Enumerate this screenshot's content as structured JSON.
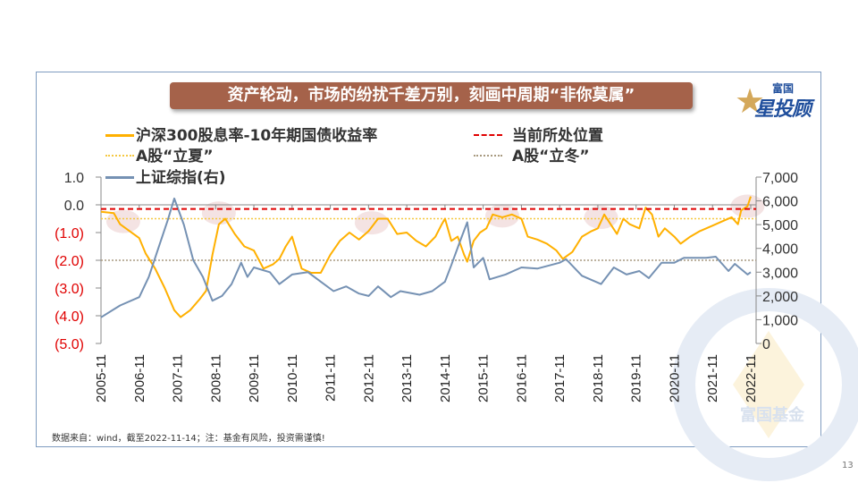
{
  "title": "资产轮动，市场的纷扰千差万别，刻画中周期“非你莫属”",
  "logo": {
    "small": "富国",
    "big": "星投顾",
    "watermark": "富国基金"
  },
  "source_note": "数据来自：wind，截至2022-11-14；注：基金有风险，投资需谨慎!",
  "page_number": "13",
  "colors": {
    "yield": "#ffb000",
    "index": "#7591b3",
    "current": "#e00000",
    "summer": "#f5c842",
    "winter": "#a89a80",
    "banner": "#a5624a",
    "highlight": "#f2dede",
    "negative_tick": "#e00000"
  },
  "chart_data": {
    "type": "line",
    "legend": [
      {
        "key": "yield",
        "label": "沪深300股息率-10年期国债收益率",
        "style": "solid"
      },
      {
        "key": "current",
        "label": "当前所处位置",
        "style": "dashed"
      },
      {
        "key": "summer",
        "label": "A股“立夏”",
        "style": "dotted"
      },
      {
        "key": "winter",
        "label": "A股“立冬”",
        "style": "dotted"
      },
      {
        "key": "index",
        "label": "上证综指(右)",
        "style": "solid"
      }
    ],
    "legend_placement": "top-left",
    "xlim": [
      "2005-11",
      "2022-11"
    ],
    "x_ticks": [
      "2005-11",
      "2006-11",
      "2007-11",
      "2008-11",
      "2009-11",
      "2010-11",
      "2011-11",
      "2012-11",
      "2013-11",
      "2014-11",
      "2015-11",
      "2016-11",
      "2017-11",
      "2018-11",
      "2019-11",
      "2020-11",
      "2021-11",
      "2022-11"
    ],
    "y_left": {
      "lim": [
        -5.0,
        1.0
      ],
      "ticks": [
        1.0,
        0.0,
        -1.0,
        -2.0,
        -3.0,
        -4.0,
        -5.0
      ],
      "tick_labels": [
        "1.0",
        "0.0",
        "(1.0)",
        "(2.0)",
        "(3.0)",
        "(4.0)",
        "(5.0)"
      ]
    },
    "y_right": {
      "lim": [
        0,
        7000
      ],
      "ticks": [
        7000,
        6000,
        5000,
        4000,
        3000,
        2000,
        1000,
        0
      ],
      "tick_labels": [
        "7,000",
        "6,000",
        "5,000",
        "4,000",
        "3,000",
        "2,000",
        "1,000",
        "0"
      ]
    },
    "reference_lines": {
      "current": -0.15,
      "summer": -0.5,
      "winter": -2.0
    },
    "highlights": [
      {
        "date": "2006-06",
        "value": -0.6
      },
      {
        "date": "2008-12",
        "value": -0.3
      },
      {
        "date": "2012-12",
        "value": -0.65
      },
      {
        "date": "2016-05",
        "value": -0.4
      },
      {
        "date": "2018-12",
        "value": -0.45
      },
      {
        "date": "2022-10",
        "value": -0.05
      }
    ],
    "series": [
      {
        "key": "yield",
        "axis": "left",
        "points": [
          [
            "2005-11",
            -0.25
          ],
          [
            "2006-03",
            -0.3
          ],
          [
            "2006-05",
            -0.7
          ],
          [
            "2006-08",
            -0.95
          ],
          [
            "2006-11",
            -1.2
          ],
          [
            "2007-01",
            -1.75
          ],
          [
            "2007-04",
            -2.3
          ],
          [
            "2007-07",
            -3.0
          ],
          [
            "2007-10",
            -3.8
          ],
          [
            "2007-12",
            -4.05
          ],
          [
            "2008-03",
            -3.8
          ],
          [
            "2008-06",
            -3.4
          ],
          [
            "2008-08",
            -3.1
          ],
          [
            "2008-10",
            -1.8
          ],
          [
            "2008-12",
            -0.7
          ],
          [
            "2009-02",
            -0.5
          ],
          [
            "2009-05",
            -1.05
          ],
          [
            "2009-08",
            -1.5
          ],
          [
            "2009-11",
            -1.65
          ],
          [
            "2010-02",
            -2.3
          ],
          [
            "2010-05",
            -2.15
          ],
          [
            "2010-07",
            -1.95
          ],
          [
            "2010-09",
            -1.5
          ],
          [
            "2010-11",
            -1.15
          ],
          [
            "2011-02",
            -2.3
          ],
          [
            "2011-05",
            -2.45
          ],
          [
            "2011-08",
            -2.45
          ],
          [
            "2011-11",
            -1.8
          ],
          [
            "2012-02",
            -1.3
          ],
          [
            "2012-05",
            -1.0
          ],
          [
            "2012-08",
            -1.25
          ],
          [
            "2012-11",
            -0.95
          ],
          [
            "2013-02",
            -0.5
          ],
          [
            "2013-05",
            -0.5
          ],
          [
            "2013-08",
            -1.05
          ],
          [
            "2013-11",
            -1.0
          ],
          [
            "2014-02",
            -1.3
          ],
          [
            "2014-05",
            -1.5
          ],
          [
            "2014-08",
            -1.15
          ],
          [
            "2014-10",
            -0.7
          ],
          [
            "2014-11",
            -0.5
          ],
          [
            "2015-01",
            -1.3
          ],
          [
            "2015-03",
            -1.15
          ],
          [
            "2015-05",
            -1.8
          ],
          [
            "2015-06",
            -2.05
          ],
          [
            "2015-08",
            -1.3
          ],
          [
            "2015-10",
            -1.0
          ],
          [
            "2015-12",
            -0.85
          ],
          [
            "2016-02",
            -0.35
          ],
          [
            "2016-05",
            -0.45
          ],
          [
            "2016-08",
            -0.35
          ],
          [
            "2016-11",
            -0.5
          ],
          [
            "2017-01",
            -1.15
          ],
          [
            "2017-04",
            -1.25
          ],
          [
            "2017-07",
            -1.4
          ],
          [
            "2017-10",
            -1.65
          ],
          [
            "2017-12",
            -1.95
          ],
          [
            "2018-03",
            -1.7
          ],
          [
            "2018-06",
            -1.15
          ],
          [
            "2018-09",
            -0.95
          ],
          [
            "2018-11",
            -0.85
          ],
          [
            "2019-01",
            -0.35
          ],
          [
            "2019-03",
            -0.7
          ],
          [
            "2019-05",
            -1.05
          ],
          [
            "2019-07",
            -0.5
          ],
          [
            "2019-09",
            -0.7
          ],
          [
            "2019-12",
            -0.85
          ],
          [
            "2020-02",
            -0.1
          ],
          [
            "2020-04",
            -0.35
          ],
          [
            "2020-06",
            -1.15
          ],
          [
            "2020-08",
            -0.85
          ],
          [
            "2020-11",
            -1.15
          ],
          [
            "2021-01",
            -1.4
          ],
          [
            "2021-04",
            -1.15
          ],
          [
            "2021-07",
            -0.95
          ],
          [
            "2021-11",
            -0.75
          ],
          [
            "2022-02",
            -0.6
          ],
          [
            "2022-05",
            -0.45
          ],
          [
            "2022-07",
            -0.7
          ],
          [
            "2022-08",
            -0.2
          ],
          [
            "2022-10",
            -0.05
          ],
          [
            "2022-11",
            0.3
          ]
        ]
      },
      {
        "key": "index",
        "axis": "right",
        "points": [
          [
            "2005-11",
            1100
          ],
          [
            "2006-05",
            1600
          ],
          [
            "2006-11",
            1950
          ],
          [
            "2007-02",
            2800
          ],
          [
            "2007-05",
            4000
          ],
          [
            "2007-08",
            5200
          ],
          [
            "2007-10",
            6100
          ],
          [
            "2008-01",
            5000
          ],
          [
            "2008-04",
            3500
          ],
          [
            "2008-07",
            2800
          ],
          [
            "2008-10",
            1800
          ],
          [
            "2009-01",
            2000
          ],
          [
            "2009-04",
            2500
          ],
          [
            "2009-07",
            3400
          ],
          [
            "2009-09",
            2800
          ],
          [
            "2009-11",
            3200
          ],
          [
            "2010-04",
            3000
          ],
          [
            "2010-07",
            2500
          ],
          [
            "2010-11",
            2900
          ],
          [
            "2011-04",
            3000
          ],
          [
            "2011-08",
            2600
          ],
          [
            "2011-12",
            2200
          ],
          [
            "2012-04",
            2400
          ],
          [
            "2012-08",
            2100
          ],
          [
            "2012-11",
            2000
          ],
          [
            "2013-02",
            2400
          ],
          [
            "2013-06",
            1950
          ],
          [
            "2013-09",
            2200
          ],
          [
            "2014-03",
            2050
          ],
          [
            "2014-07",
            2200
          ],
          [
            "2014-11",
            2600
          ],
          [
            "2015-01",
            3300
          ],
          [
            "2015-04",
            4400
          ],
          [
            "2015-06",
            5100
          ],
          [
            "2015-08",
            3200
          ],
          [
            "2015-11",
            3600
          ],
          [
            "2016-01",
            2700
          ],
          [
            "2016-06",
            2900
          ],
          [
            "2016-11",
            3200
          ],
          [
            "2017-04",
            3150
          ],
          [
            "2017-11",
            3400
          ],
          [
            "2018-01",
            3550
          ],
          [
            "2018-06",
            2850
          ],
          [
            "2018-12",
            2500
          ],
          [
            "2019-04",
            3200
          ],
          [
            "2019-08",
            2900
          ],
          [
            "2019-12",
            3050
          ],
          [
            "2020-03",
            2750
          ],
          [
            "2020-07",
            3400
          ],
          [
            "2020-11",
            3400
          ],
          [
            "2021-02",
            3600
          ],
          [
            "2021-09",
            3600
          ],
          [
            "2021-12",
            3650
          ],
          [
            "2022-04",
            3050
          ],
          [
            "2022-06",
            3350
          ],
          [
            "2022-10",
            2900
          ],
          [
            "2022-11",
            3000
          ]
        ]
      }
    ]
  }
}
